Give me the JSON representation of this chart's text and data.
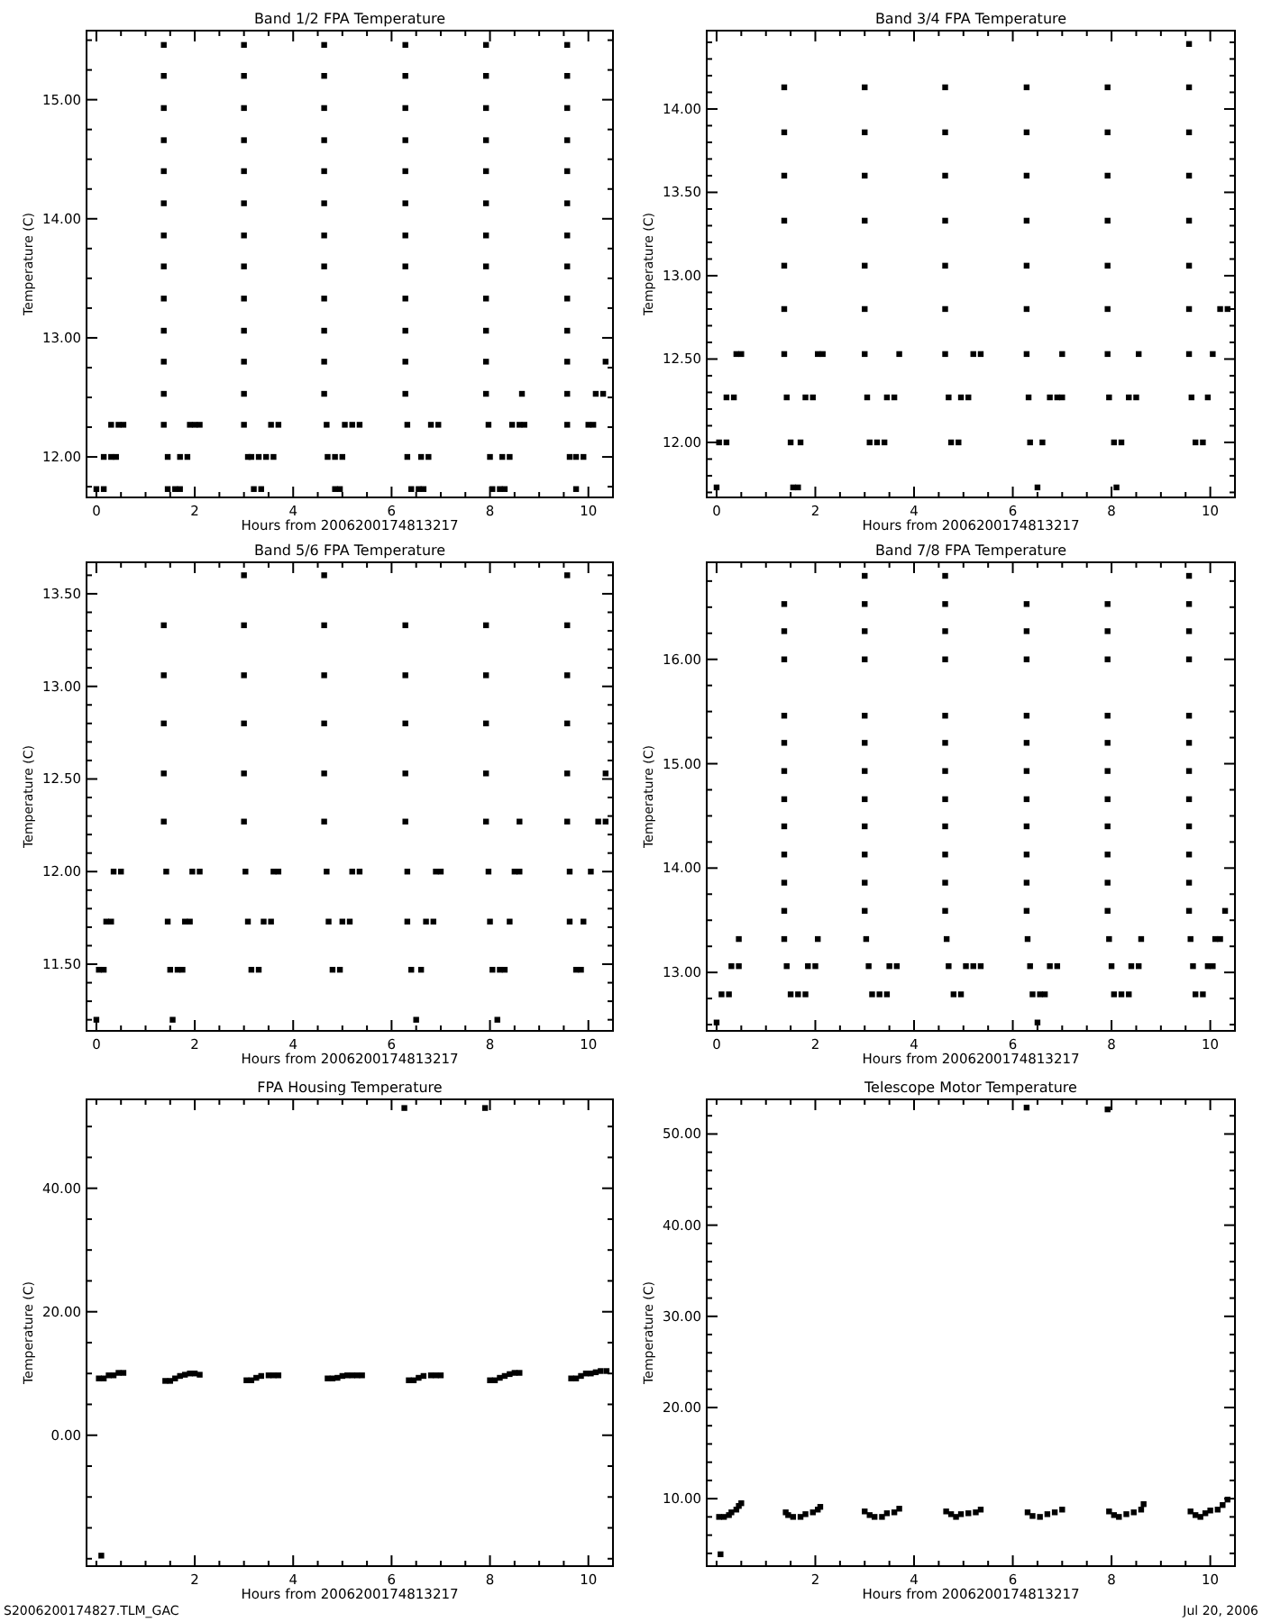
{
  "chart_data": [
    {
      "type": "scatter",
      "title": "Band 1/2 FPA Temperature",
      "xlabel": "Hours from 2006200174813217",
      "ylabel": "Temperature (C)",
      "marker": "square",
      "xlim": [
        -0.2,
        10.5
      ],
      "ylim": [
        11.66,
        15.58
      ],
      "xticks": [
        0,
        {
          "value": 0.5,
          "label": null
        },
        {
          "value": 1,
          "label": null
        },
        {
          "value": 1.5,
          "label": null
        },
        2,
        {
          "value": 2.5,
          "label": null
        },
        {
          "value": 3,
          "label": null
        },
        {
          "value": 3.5,
          "label": null
        },
        4,
        {
          "value": 4.5,
          "label": null
        },
        {
          "value": 5,
          "label": null
        },
        {
          "value": 5.5,
          "label": null
        },
        6,
        {
          "value": 6.5,
          "label": null
        },
        {
          "value": 7,
          "label": null
        },
        {
          "value": 7.5,
          "label": null
        },
        8,
        {
          "value": 8.5,
          "label": null
        },
        {
          "value": 9,
          "label": null
        },
        {
          "value": 9.5,
          "label": null
        },
        10,
        {
          "value": 10.5,
          "label": null
        }
      ],
      "yticks": [
        {
          "value": 11.75,
          "label": null
        },
        {
          "value": 12,
          "label": "12.00"
        },
        {
          "value": 12.25,
          "label": null
        },
        {
          "value": 12.5,
          "label": null
        },
        {
          "value": 12.75,
          "label": null
        },
        {
          "value": 13,
          "label": "13.00"
        },
        {
          "value": 13.25,
          "label": null
        },
        {
          "value": 13.5,
          "label": null
        },
        {
          "value": 13.75,
          "label": null
        },
        {
          "value": 14,
          "label": "14.00"
        },
        {
          "value": 14.25,
          "label": null
        },
        {
          "value": 14.5,
          "label": null
        },
        {
          "value": 14.75,
          "label": null
        },
        {
          "value": 15,
          "label": "15.00"
        },
        {
          "value": 15.25,
          "label": null
        },
        {
          "value": 15.5,
          "label": null
        }
      ],
      "series": [
        {
          "color": "#000000",
          "x": [
            0,
            0.15,
            0.15,
            0.3,
            0.4,
            0.3,
            0.45,
            0.55,
            1.37,
            1.37,
            1.37,
            1.37,
            1.37,
            1.37,
            1.37,
            1.37,
            1.37,
            1.37,
            1.37,
            1.37,
            1.37,
            1.45,
            1.45,
            1.6,
            1.7,
            1.7,
            1.85,
            1.9,
            2.0,
            2.1,
            3.0,
            3.0,
            3.0,
            3.0,
            3.0,
            3.0,
            3.0,
            3.0,
            3.0,
            3.0,
            3.0,
            3.0,
            3.0,
            3.08,
            3.15,
            3.2,
            3.35,
            3.3,
            3.45,
            3.6,
            3.55,
            3.7,
            4.63,
            4.63,
            4.63,
            4.63,
            4.63,
            4.63,
            4.63,
            4.63,
            4.63,
            4.63,
            4.63,
            4.63,
            4.68,
            4.7,
            4.85,
            5.0,
            4.85,
            4.95,
            5.05,
            5.2,
            5.35,
            6.28,
            6.28,
            6.28,
            6.28,
            6.28,
            6.28,
            6.28,
            6.28,
            6.28,
            6.28,
            6.28,
            6.28,
            6.32,
            6.32,
            6.4,
            6.55,
            6.65,
            6.6,
            6.75,
            6.8,
            6.95,
            7.92,
            7.92,
            7.92,
            7.92,
            7.92,
            7.92,
            7.92,
            7.92,
            7.92,
            7.92,
            7.92,
            7.92,
            7.97,
            8.0,
            8.05,
            8.2,
            8.3,
            8.25,
            8.4,
            8.45,
            8.6,
            8.7,
            8.65,
            9.57,
            9.57,
            9.57,
            9.57,
            9.57,
            9.57,
            9.57,
            9.57,
            9.57,
            9.57,
            9.57,
            9.57,
            9.57,
            9.62,
            9.75,
            9.9,
            9.75,
            10.0,
            10.1,
            10.15,
            10.3,
            10.35
          ],
          "values": [
            11.73,
            11.73,
            12.0,
            12.0,
            12.0,
            12.27,
            12.27,
            12.27,
            12.27,
            12.53,
            12.8,
            13.06,
            13.33,
            13.6,
            13.86,
            14.13,
            14.4,
            14.66,
            14.93,
            15.2,
            15.46,
            12.0,
            11.73,
            11.73,
            11.73,
            12.0,
            12.0,
            12.27,
            12.27,
            12.27,
            12.27,
            12.53,
            12.8,
            13.06,
            13.33,
            13.6,
            13.86,
            14.13,
            14.4,
            14.66,
            14.93,
            15.2,
            15.46,
            12.0,
            12.0,
            11.73,
            11.73,
            12.0,
            12.0,
            12.0,
            12.27,
            12.27,
            12.53,
            12.8,
            13.06,
            13.33,
            13.6,
            13.86,
            14.13,
            14.4,
            14.66,
            14.93,
            15.2,
            15.46,
            12.27,
            12.0,
            12.0,
            12.0,
            11.73,
            11.73,
            12.27,
            12.27,
            12.27,
            12.53,
            12.8,
            13.06,
            13.33,
            13.6,
            13.86,
            14.13,
            14.4,
            14.66,
            14.93,
            15.2,
            15.46,
            12.27,
            12.0,
            11.73,
            11.73,
            11.73,
            12.0,
            12.0,
            12.27,
            12.27,
            12.53,
            12.8,
            13.06,
            13.33,
            13.6,
            13.86,
            14.13,
            14.4,
            14.66,
            14.93,
            15.2,
            15.46,
            12.27,
            12.0,
            11.73,
            11.73,
            11.73,
            12.0,
            12.0,
            12.27,
            12.27,
            12.27,
            12.53,
            12.27,
            12.53,
            12.8,
            13.06,
            13.33,
            13.6,
            13.86,
            14.13,
            14.4,
            14.66,
            14.93,
            15.2,
            15.46,
            12.0,
            12.0,
            12.0,
            11.73,
            12.27,
            12.27,
            12.53,
            12.53,
            12.8
          ]
        }
      ]
    },
    {
      "type": "scatter",
      "title": "Band 3/4 FPA Temperature",
      "xlabel": "Hours from 2006200174813217",
      "ylabel": "Temperature (C)",
      "marker": "square",
      "xlim": [
        -0.2,
        10.5
      ],
      "ylim": [
        11.67,
        14.47
      ],
      "xticks": [
        0,
        {
          "value": 0.5,
          "label": null
        },
        {
          "value": 1,
          "label": null
        },
        {
          "value": 1.5,
          "label": null
        },
        2,
        {
          "value": 2.5,
          "label": null
        },
        {
          "value": 3,
          "label": null
        },
        {
          "value": 3.5,
          "label": null
        },
        4,
        {
          "value": 4.5,
          "label": null
        },
        {
          "value": 5,
          "label": null
        },
        {
          "value": 5.5,
          "label": null
        },
        6,
        {
          "value": 6.5,
          "label": null
        },
        {
          "value": 7,
          "label": null
        },
        {
          "value": 7.5,
          "label": null
        },
        8,
        {
          "value": 8.5,
          "label": null
        },
        {
          "value": 9,
          "label": null
        },
        {
          "value": 9.5,
          "label": null
        },
        10,
        {
          "value": 10.5,
          "label": null
        }
      ],
      "yticks": [
        {
          "value": 11.7,
          "label": null
        },
        {
          "value": 11.8,
          "label": null
        },
        {
          "value": 11.9,
          "label": null
        },
        {
          "value": 12,
          "label": "12.00"
        },
        {
          "value": 12.1,
          "label": null
        },
        {
          "value": 12.2,
          "label": null
        },
        {
          "value": 12.3,
          "label": null
        },
        {
          "value": 12.4,
          "label": null
        },
        {
          "value": 12.5,
          "label": "12.50"
        },
        {
          "value": 12.6,
          "label": null
        },
        {
          "value": 12.7,
          "label": null
        },
        {
          "value": 12.8,
          "label": null
        },
        {
          "value": 12.9,
          "label": null
        },
        {
          "value": 13,
          "label": "13.00"
        },
        {
          "value": 13.1,
          "label": null
        },
        {
          "value": 13.2,
          "label": null
        },
        {
          "value": 13.3,
          "label": null
        },
        {
          "value": 13.4,
          "label": null
        },
        {
          "value": 13.5,
          "label": "13.50"
        },
        {
          "value": 13.6,
          "label": null
        },
        {
          "value": 13.7,
          "label": null
        },
        {
          "value": 13.8,
          "label": null
        },
        {
          "value": 13.9,
          "label": null
        },
        {
          "value": 14,
          "label": "14.00"
        },
        {
          "value": 14.1,
          "label": null
        },
        {
          "value": 14.2,
          "label": null
        },
        {
          "value": 14.3,
          "label": null
        },
        {
          "value": 14.4,
          "label": null
        }
      ],
      "series": [
        {
          "color": "#000000",
          "x": [
            0,
            0.05,
            0.2,
            0.2,
            0.35,
            0.4,
            0.5,
            1.37,
            1.37,
            1.37,
            1.37,
            1.37,
            1.37,
            1.37,
            1.42,
            1.5,
            1.55,
            1.65,
            1.7,
            1.8,
            1.95,
            2.05,
            2.15,
            3.0,
            3.0,
            3.0,
            3.0,
            3.0,
            3.0,
            3.0,
            3.05,
            3.1,
            3.25,
            3.4,
            3.45,
            3.6,
            3.7,
            4.63,
            4.63,
            4.63,
            4.63,
            4.63,
            4.63,
            4.63,
            4.7,
            4.75,
            4.9,
            4.95,
            5.1,
            5.2,
            5.35,
            6.28,
            6.28,
            6.28,
            6.28,
            6.28,
            6.28,
            6.28,
            6.32,
            6.35,
            6.5,
            6.6,
            6.75,
            6.9,
            7.0,
            7.0,
            7.92,
            7.92,
            7.92,
            7.92,
            7.92,
            7.92,
            7.92,
            7.95,
            8.05,
            8.2,
            8.1,
            8.35,
            8.5,
            8.55,
            9.57,
            9.57,
            9.57,
            9.57,
            9.57,
            9.57,
            9.57,
            9.57,
            9.62,
            9.7,
            9.85,
            9.95,
            10.05,
            10.2,
            10.35
          ],
          "values": [
            11.73,
            12.0,
            12.0,
            12.27,
            12.27,
            12.53,
            12.53,
            12.53,
            12.8,
            13.06,
            13.33,
            13.6,
            13.86,
            14.13,
            12.27,
            12.0,
            11.73,
            11.73,
            12.0,
            12.27,
            12.27,
            12.53,
            12.53,
            12.53,
            12.8,
            13.06,
            13.33,
            13.6,
            13.86,
            14.13,
            12.27,
            12.0,
            12.0,
            12.0,
            12.27,
            12.27,
            12.53,
            12.53,
            12.8,
            13.06,
            13.33,
            13.6,
            13.86,
            14.13,
            12.27,
            12.0,
            12.0,
            12.27,
            12.27,
            12.53,
            12.53,
            12.53,
            12.8,
            13.06,
            13.33,
            13.6,
            13.86,
            14.13,
            12.27,
            12.0,
            11.73,
            12.0,
            12.27,
            12.27,
            12.27,
            12.53,
            12.53,
            12.8,
            13.06,
            13.33,
            13.6,
            13.86,
            14.13,
            12.27,
            12.0,
            12.0,
            11.73,
            12.27,
            12.27,
            12.53,
            12.53,
            12.8,
            13.06,
            13.33,
            13.6,
            13.86,
            14.13,
            14.39,
            12.27,
            12.0,
            12.0,
            12.27,
            12.53,
            12.8,
            12.8
          ]
        }
      ]
    },
    {
      "type": "scatter",
      "title": "Band 5/6 FPA Temperature",
      "xlabel": "Hours from 2006200174813217",
      "ylabel": "Temperature (C)",
      "marker": "square",
      "xlim": [
        -0.2,
        10.5
      ],
      "ylim": [
        11.14,
        13.67
      ],
      "xticks": [
        0,
        {
          "value": 0.5,
          "label": null
        },
        {
          "value": 1,
          "label": null
        },
        {
          "value": 1.5,
          "label": null
        },
        2,
        {
          "value": 2.5,
          "label": null
        },
        {
          "value": 3,
          "label": null
        },
        {
          "value": 3.5,
          "label": null
        },
        4,
        {
          "value": 4.5,
          "label": null
        },
        {
          "value": 5,
          "label": null
        },
        {
          "value": 5.5,
          "label": null
        },
        6,
        {
          "value": 6.5,
          "label": null
        },
        {
          "value": 7,
          "label": null
        },
        {
          "value": 7.5,
          "label": null
        },
        8,
        {
          "value": 8.5,
          "label": null
        },
        {
          "value": 9,
          "label": null
        },
        {
          "value": 9.5,
          "label": null
        },
        10,
        {
          "value": 10.5,
          "label": null
        }
      ],
      "yticks": [
        {
          "value": 11.2,
          "label": null
        },
        {
          "value": 11.3,
          "label": null
        },
        {
          "value": 11.4,
          "label": null
        },
        {
          "value": 11.5,
          "label": "11.50"
        },
        {
          "value": 11.6,
          "label": null
        },
        {
          "value": 11.7,
          "label": null
        },
        {
          "value": 11.8,
          "label": null
        },
        {
          "value": 11.9,
          "label": null
        },
        {
          "value": 12,
          "label": "12.00"
        },
        {
          "value": 12.1,
          "label": null
        },
        {
          "value": 12.2,
          "label": null
        },
        {
          "value": 12.3,
          "label": null
        },
        {
          "value": 12.4,
          "label": null
        },
        {
          "value": 12.5,
          "label": "12.50"
        },
        {
          "value": 12.6,
          "label": null
        },
        {
          "value": 12.7,
          "label": null
        },
        {
          "value": 12.8,
          "label": null
        },
        {
          "value": 12.9,
          "label": null
        },
        {
          "value": 13,
          "label": "13.00"
        },
        {
          "value": 13.1,
          "label": null
        },
        {
          "value": 13.2,
          "label": null
        },
        {
          "value": 13.3,
          "label": null
        },
        {
          "value": 13.4,
          "label": null
        },
        {
          "value": 13.5,
          "label": "13.50"
        },
        {
          "value": 13.6,
          "label": null
        }
      ],
      "series": [
        {
          "color": "#000000",
          "x": [
            0,
            0.05,
            0.15,
            0.2,
            0.3,
            0.35,
            0.5,
            1.37,
            1.37,
            1.37,
            1.37,
            1.37,
            1.42,
            1.45,
            1.5,
            1.55,
            1.65,
            1.75,
            1.8,
            1.9,
            1.95,
            2.1,
            3.0,
            3.0,
            3.0,
            3.0,
            3.0,
            3.0,
            3.03,
            3.08,
            3.15,
            3.3,
            3.4,
            3.55,
            3.6,
            3.7,
            4.63,
            4.63,
            4.63,
            4.63,
            4.63,
            4.63,
            4.68,
            4.72,
            4.8,
            4.95,
            5.0,
            5.15,
            5.2,
            5.35,
            6.28,
            6.28,
            6.28,
            6.28,
            6.28,
            6.32,
            6.32,
            6.4,
            6.5,
            6.6,
            6.7,
            6.85,
            6.9,
            7.0,
            7.92,
            7.92,
            7.92,
            7.92,
            7.92,
            7.97,
            8.0,
            8.05,
            8.2,
            8.3,
            8.15,
            8.4,
            8.5,
            8.6,
            8.6,
            9.57,
            9.57,
            9.57,
            9.57,
            9.57,
            9.57,
            9.62,
            9.62,
            9.75,
            9.85,
            9.9,
            10.05,
            10.2,
            10.35,
            10.35
          ],
          "values": [
            11.2,
            11.47,
            11.47,
            11.73,
            11.73,
            12.0,
            12.0,
            12.27,
            12.53,
            12.8,
            13.06,
            13.33,
            12.0,
            11.73,
            11.47,
            11.2,
            11.47,
            11.47,
            11.73,
            11.73,
            12.0,
            12.0,
            12.27,
            12.53,
            12.8,
            13.06,
            13.33,
            13.6,
            12.0,
            11.73,
            11.47,
            11.47,
            11.73,
            11.73,
            12.0,
            12.0,
            12.27,
            12.53,
            12.8,
            13.06,
            13.33,
            13.6,
            12.0,
            11.73,
            11.47,
            11.47,
            11.73,
            11.73,
            12.0,
            12.0,
            12.27,
            12.53,
            12.8,
            13.06,
            13.33,
            12.0,
            11.73,
            11.47,
            11.2,
            11.47,
            11.73,
            11.73,
            12.0,
            12.0,
            12.27,
            12.53,
            12.8,
            13.06,
            13.33,
            12.0,
            11.73,
            11.47,
            11.47,
            11.47,
            11.2,
            11.73,
            12.0,
            12.0,
            12.27,
            12.27,
            12.53,
            12.8,
            13.06,
            13.33,
            13.6,
            12.0,
            11.73,
            11.47,
            11.47,
            11.73,
            12.0,
            12.27,
            12.27,
            12.53
          ]
        }
      ]
    },
    {
      "type": "scatter",
      "title": "Band 7/8 FPA Temperature",
      "xlabel": "Hours from 2006200174813217",
      "ylabel": "Temperature (C)",
      "marker": "square",
      "xlim": [
        -0.2,
        10.5
      ],
      "ylim": [
        12.44,
        16.93
      ],
      "xticks": [
        0,
        {
          "value": 0.5,
          "label": null
        },
        {
          "value": 1,
          "label": null
        },
        {
          "value": 1.5,
          "label": null
        },
        2,
        {
          "value": 2.5,
          "label": null
        },
        {
          "value": 3,
          "label": null
        },
        {
          "value": 3.5,
          "label": null
        },
        4,
        {
          "value": 4.5,
          "label": null
        },
        {
          "value": 5,
          "label": null
        },
        {
          "value": 5.5,
          "label": null
        },
        6,
        {
          "value": 6.5,
          "label": null
        },
        {
          "value": 7,
          "label": null
        },
        {
          "value": 7.5,
          "label": null
        },
        8,
        {
          "value": 8.5,
          "label": null
        },
        {
          "value": 9,
          "label": null
        },
        {
          "value": 9.5,
          "label": null
        },
        10,
        {
          "value": 10.5,
          "label": null
        }
      ],
      "yticks": [
        {
          "value": 12.5,
          "label": null
        },
        {
          "value": 12.75,
          "label": null
        },
        {
          "value": 13,
          "label": "13.00"
        },
        {
          "value": 13.25,
          "label": null
        },
        {
          "value": 13.5,
          "label": null
        },
        {
          "value": 13.75,
          "label": null
        },
        {
          "value": 14,
          "label": "14.00"
        },
        {
          "value": 14.25,
          "label": null
        },
        {
          "value": 14.5,
          "label": null
        },
        {
          "value": 14.75,
          "label": null
        },
        {
          "value": 15,
          "label": "15.00"
        },
        {
          "value": 15.25,
          "label": null
        },
        {
          "value": 15.5,
          "label": null
        },
        {
          "value": 15.75,
          "label": null
        },
        {
          "value": 16,
          "label": "16.00"
        },
        {
          "value": 16.25,
          "label": null
        },
        {
          "value": 16.5,
          "label": null
        },
        {
          "value": 16.75,
          "label": null
        }
      ],
      "series": [
        {
          "color": "#000000",
          "x": [
            0,
            0.1,
            0.25,
            0.3,
            0.45,
            0.45,
            1.37,
            1.37,
            1.37,
            1.37,
            1.37,
            1.37,
            1.37,
            1.37,
            1.37,
            1.37,
            1.37,
            1.37,
            1.42,
            1.5,
            1.65,
            1.8,
            1.85,
            2.0,
            2.05,
            3.0,
            3.0,
            3.0,
            3.0,
            3.0,
            3.0,
            3.0,
            3.0,
            3.0,
            3.0,
            3.0,
            3.0,
            3.03,
            3.08,
            3.15,
            3.3,
            3.45,
            3.5,
            3.65,
            4.63,
            4.63,
            4.63,
            4.63,
            4.63,
            4.63,
            4.63,
            4.63,
            4.63,
            4.63,
            4.63,
            4.63,
            4.66,
            4.7,
            4.8,
            4.95,
            5.05,
            5.2,
            5.35,
            6.28,
            6.28,
            6.28,
            6.28,
            6.28,
            6.28,
            6.28,
            6.28,
            6.28,
            6.28,
            6.28,
            6.3,
            6.35,
            6.4,
            6.55,
            6.65,
            6.5,
            6.75,
            6.9,
            7.92,
            7.92,
            7.92,
            7.92,
            7.92,
            7.92,
            7.92,
            7.92,
            7.92,
            7.92,
            7.92,
            7.95,
            8.0,
            8.05,
            8.2,
            8.35,
            8.4,
            8.55,
            8.6,
            9.57,
            9.57,
            9.57,
            9.57,
            9.57,
            9.57,
            9.57,
            9.57,
            9.57,
            9.57,
            9.57,
            9.57,
            9.6,
            9.65,
            9.7,
            9.85,
            9.95,
            10.05,
            10.1,
            10.2,
            10.3
          ],
          "values": [
            12.52,
            12.79,
            12.79,
            13.06,
            13.06,
            13.32,
            13.59,
            13.86,
            14.13,
            14.4,
            14.66,
            14.93,
            15.2,
            15.46,
            16.0,
            16.27,
            16.53,
            13.32,
            13.06,
            12.79,
            12.79,
            12.79,
            13.06,
            13.06,
            13.32,
            13.59,
            13.86,
            14.13,
            14.4,
            14.66,
            14.93,
            15.2,
            15.46,
            16.0,
            16.27,
            16.53,
            16.8,
            13.32,
            13.06,
            12.79,
            12.79,
            12.79,
            13.06,
            13.06,
            13.59,
            13.86,
            14.13,
            14.4,
            14.66,
            14.93,
            15.2,
            15.46,
            16.0,
            16.27,
            16.53,
            16.8,
            13.32,
            13.06,
            12.79,
            12.79,
            13.06,
            13.06,
            13.06,
            13.59,
            13.86,
            14.13,
            14.4,
            14.66,
            14.93,
            15.2,
            15.46,
            16.0,
            16.27,
            16.53,
            13.32,
            13.06,
            12.79,
            12.79,
            12.79,
            12.52,
            13.06,
            13.06,
            13.59,
            13.86,
            14.13,
            14.4,
            14.66,
            14.93,
            15.2,
            15.46,
            16.0,
            16.27,
            16.53,
            13.32,
            13.06,
            12.79,
            12.79,
            12.79,
            13.06,
            13.06,
            13.32,
            13.59,
            13.86,
            14.13,
            14.4,
            14.66,
            14.93,
            15.2,
            15.46,
            16.0,
            16.27,
            16.53,
            16.8,
            13.32,
            13.06,
            12.79,
            12.79,
            13.06,
            13.06,
            13.32,
            13.32,
            13.59
          ]
        }
      ]
    },
    {
      "type": "scatter",
      "title": "FPA Housing Temperature",
      "xlabel": "Hours from 2006200174813217",
      "ylabel": "Temperature (C)",
      "marker": "square",
      "xlim": [
        -0.2,
        10.5
      ],
      "ylim": [
        -21.2,
        54.4
      ],
      "annotations": [
        "S2006200174827.TLM_GAC"
      ],
      "xticks": [
        {
          "value": 0,
          "label": null
        },
        {
          "value": 0.5,
          "label": null
        },
        {
          "value": 1,
          "label": null
        },
        {
          "value": 1.5,
          "label": null
        },
        2,
        {
          "value": 2.5,
          "label": null
        },
        {
          "value": 3,
          "label": null
        },
        {
          "value": 3.5,
          "label": null
        },
        4,
        {
          "value": 4.5,
          "label": null
        },
        {
          "value": 5,
          "label": null
        },
        {
          "value": 5.5,
          "label": null
        },
        6,
        {
          "value": 6.5,
          "label": null
        },
        {
          "value": 7,
          "label": null
        },
        {
          "value": 7.5,
          "label": null
        },
        8,
        {
          "value": 8.5,
          "label": null
        },
        {
          "value": 9,
          "label": null
        },
        {
          "value": 9.5,
          "label": null
        },
        10,
        {
          "value": 10.5,
          "label": null
        }
      ],
      "yticks": [
        {
          "value": -20,
          "label": null
        },
        {
          "value": -15,
          "label": null
        },
        {
          "value": -10,
          "label": null
        },
        {
          "value": -5,
          "label": null
        },
        {
          "value": 0,
          "label": "0.00"
        },
        {
          "value": 5,
          "label": null
        },
        {
          "value": 10,
          "label": null
        },
        {
          "value": 15,
          "label": null
        },
        {
          "value": 20,
          "label": "20.00"
        },
        {
          "value": 25,
          "label": null
        },
        {
          "value": 30,
          "label": null
        },
        {
          "value": 35,
          "label": null
        },
        {
          "value": 40,
          "label": "40.00"
        },
        {
          "value": 45,
          "label": null
        },
        {
          "value": 50,
          "label": null
        }
      ],
      "series": [
        {
          "color": "#000000",
          "x": [
            0.1,
            0.05,
            0.15,
            0.25,
            0.35,
            0.45,
            0.55,
            1.4,
            1.5,
            1.6,
            1.7,
            1.8,
            1.9,
            2.0,
            2.1,
            3.05,
            3.15,
            3.25,
            3.35,
            3.5,
            3.6,
            3.7,
            4.7,
            4.8,
            4.9,
            5.0,
            5.1,
            5.2,
            5.3,
            5.4,
            6.26,
            6.35,
            6.45,
            6.55,
            6.65,
            6.8,
            6.9,
            7.0,
            7.9,
            8.0,
            8.1,
            8.2,
            8.3,
            8.4,
            8.5,
            8.6,
            9.65,
            9.75,
            9.85,
            9.95,
            10.05,
            10.15,
            10.25,
            10.37
          ],
          "values": [
            -19.5,
            9.2,
            9.2,
            9.7,
            9.7,
            10.1,
            10.1,
            8.8,
            8.8,
            9.2,
            9.6,
            9.8,
            10.0,
            10.0,
            9.8,
            8.9,
            8.9,
            9.3,
            9.6,
            9.7,
            9.7,
            9.7,
            9.2,
            9.2,
            9.3,
            9.6,
            9.7,
            9.7,
            9.7,
            9.7,
            53,
            8.9,
            8.9,
            9.3,
            9.6,
            9.7,
            9.7,
            9.7,
            53,
            8.9,
            8.9,
            9.3,
            9.6,
            9.9,
            10.1,
            10.1,
            9.2,
            9.2,
            9.6,
            10.0,
            10.0,
            10.2,
            10.4,
            10.4
          ]
        }
      ]
    },
    {
      "type": "scatter",
      "title": "Telescope Motor Temperature",
      "xlabel": "Hours from 2006200174813217",
      "ylabel": "Temperature (C)",
      "marker": "square",
      "xlim": [
        -0.2,
        10.5
      ],
      "ylim": [
        2.6,
        53.8
      ],
      "annotations": [
        "Jul 20, 2006"
      ],
      "xticks": [
        {
          "value": 0,
          "label": null
        },
        {
          "value": 0.5,
          "label": null
        },
        {
          "value": 1,
          "label": null
        },
        {
          "value": 1.5,
          "label": null
        },
        2,
        {
          "value": 2.5,
          "label": null
        },
        {
          "value": 3,
          "label": null
        },
        {
          "value": 3.5,
          "label": null
        },
        4,
        {
          "value": 4.5,
          "label": null
        },
        {
          "value": 5,
          "label": null
        },
        {
          "value": 5.5,
          "label": null
        },
        6,
        {
          "value": 6.5,
          "label": null
        },
        {
          "value": 7,
          "label": null
        },
        {
          "value": 7.5,
          "label": null
        },
        8,
        {
          "value": 8.5,
          "label": null
        },
        {
          "value": 9,
          "label": null
        },
        {
          "value": 9.5,
          "label": null
        },
        10,
        {
          "value": 10.5,
          "label": null
        }
      ],
      "yticks": [
        {
          "value": 4,
          "label": null
        },
        {
          "value": 6,
          "label": null
        },
        {
          "value": 8,
          "label": null
        },
        {
          "value": 10,
          "label": "10.00"
        },
        {
          "value": 12,
          "label": null
        },
        {
          "value": 14,
          "label": null
        },
        {
          "value": 16,
          "label": null
        },
        {
          "value": 18,
          "label": null
        },
        {
          "value": 20,
          "label": "20.00"
        },
        {
          "value": 22,
          "label": null
        },
        {
          "value": 24,
          "label": null
        },
        {
          "value": 26,
          "label": null
        },
        {
          "value": 28,
          "label": null
        },
        {
          "value": 30,
          "label": "30.00"
        },
        {
          "value": 32,
          "label": null
        },
        {
          "value": 34,
          "label": null
        },
        {
          "value": 36,
          "label": null
        },
        {
          "value": 38,
          "label": null
        },
        {
          "value": 40,
          "label": "40.00"
        },
        {
          "value": 42,
          "label": null
        },
        {
          "value": 44,
          "label": null
        },
        {
          "value": 46,
          "label": null
        },
        {
          "value": 48,
          "label": null
        },
        {
          "value": 50,
          "label": "50.00"
        },
        {
          "value": 52,
          "label": null
        }
      ],
      "series": [
        {
          "color": "#000000",
          "x": [
            0.08,
            0.05,
            0.15,
            0.25,
            0.3,
            0.4,
            0.45,
            0.5,
            1.4,
            1.45,
            1.55,
            1.7,
            1.8,
            1.95,
            2.05,
            2.1,
            3.0,
            3.1,
            3.2,
            3.35,
            3.45,
            3.6,
            3.7,
            4.65,
            4.75,
            4.85,
            4.95,
            5.1,
            5.25,
            5.35,
            6.28,
            6.3,
            6.4,
            6.55,
            6.7,
            6.85,
            7.0,
            7.92,
            7.95,
            8.05,
            8.15,
            8.3,
            8.45,
            8.6,
            8.65,
            9.6,
            9.7,
            9.8,
            9.9,
            10.0,
            10.15,
            10.25,
            10.35
          ],
          "values": [
            3.9,
            8.0,
            8.0,
            8.2,
            8.5,
            8.8,
            9.2,
            9.5,
            8.5,
            8.2,
            8.0,
            8.0,
            8.3,
            8.5,
            8.8,
            9.1,
            8.6,
            8.2,
            8.0,
            8.0,
            8.4,
            8.5,
            8.9,
            8.6,
            8.3,
            8.0,
            8.3,
            8.4,
            8.5,
            8.8,
            52.9,
            8.5,
            8.1,
            8.0,
            8.3,
            8.5,
            8.8,
            52.7,
            8.6,
            8.2,
            8.0,
            8.3,
            8.5,
            8.8,
            9.4,
            8.6,
            8.2,
            8.0,
            8.4,
            8.7,
            8.8,
            9.3,
            9.9
          ]
        }
      ]
    }
  ]
}
